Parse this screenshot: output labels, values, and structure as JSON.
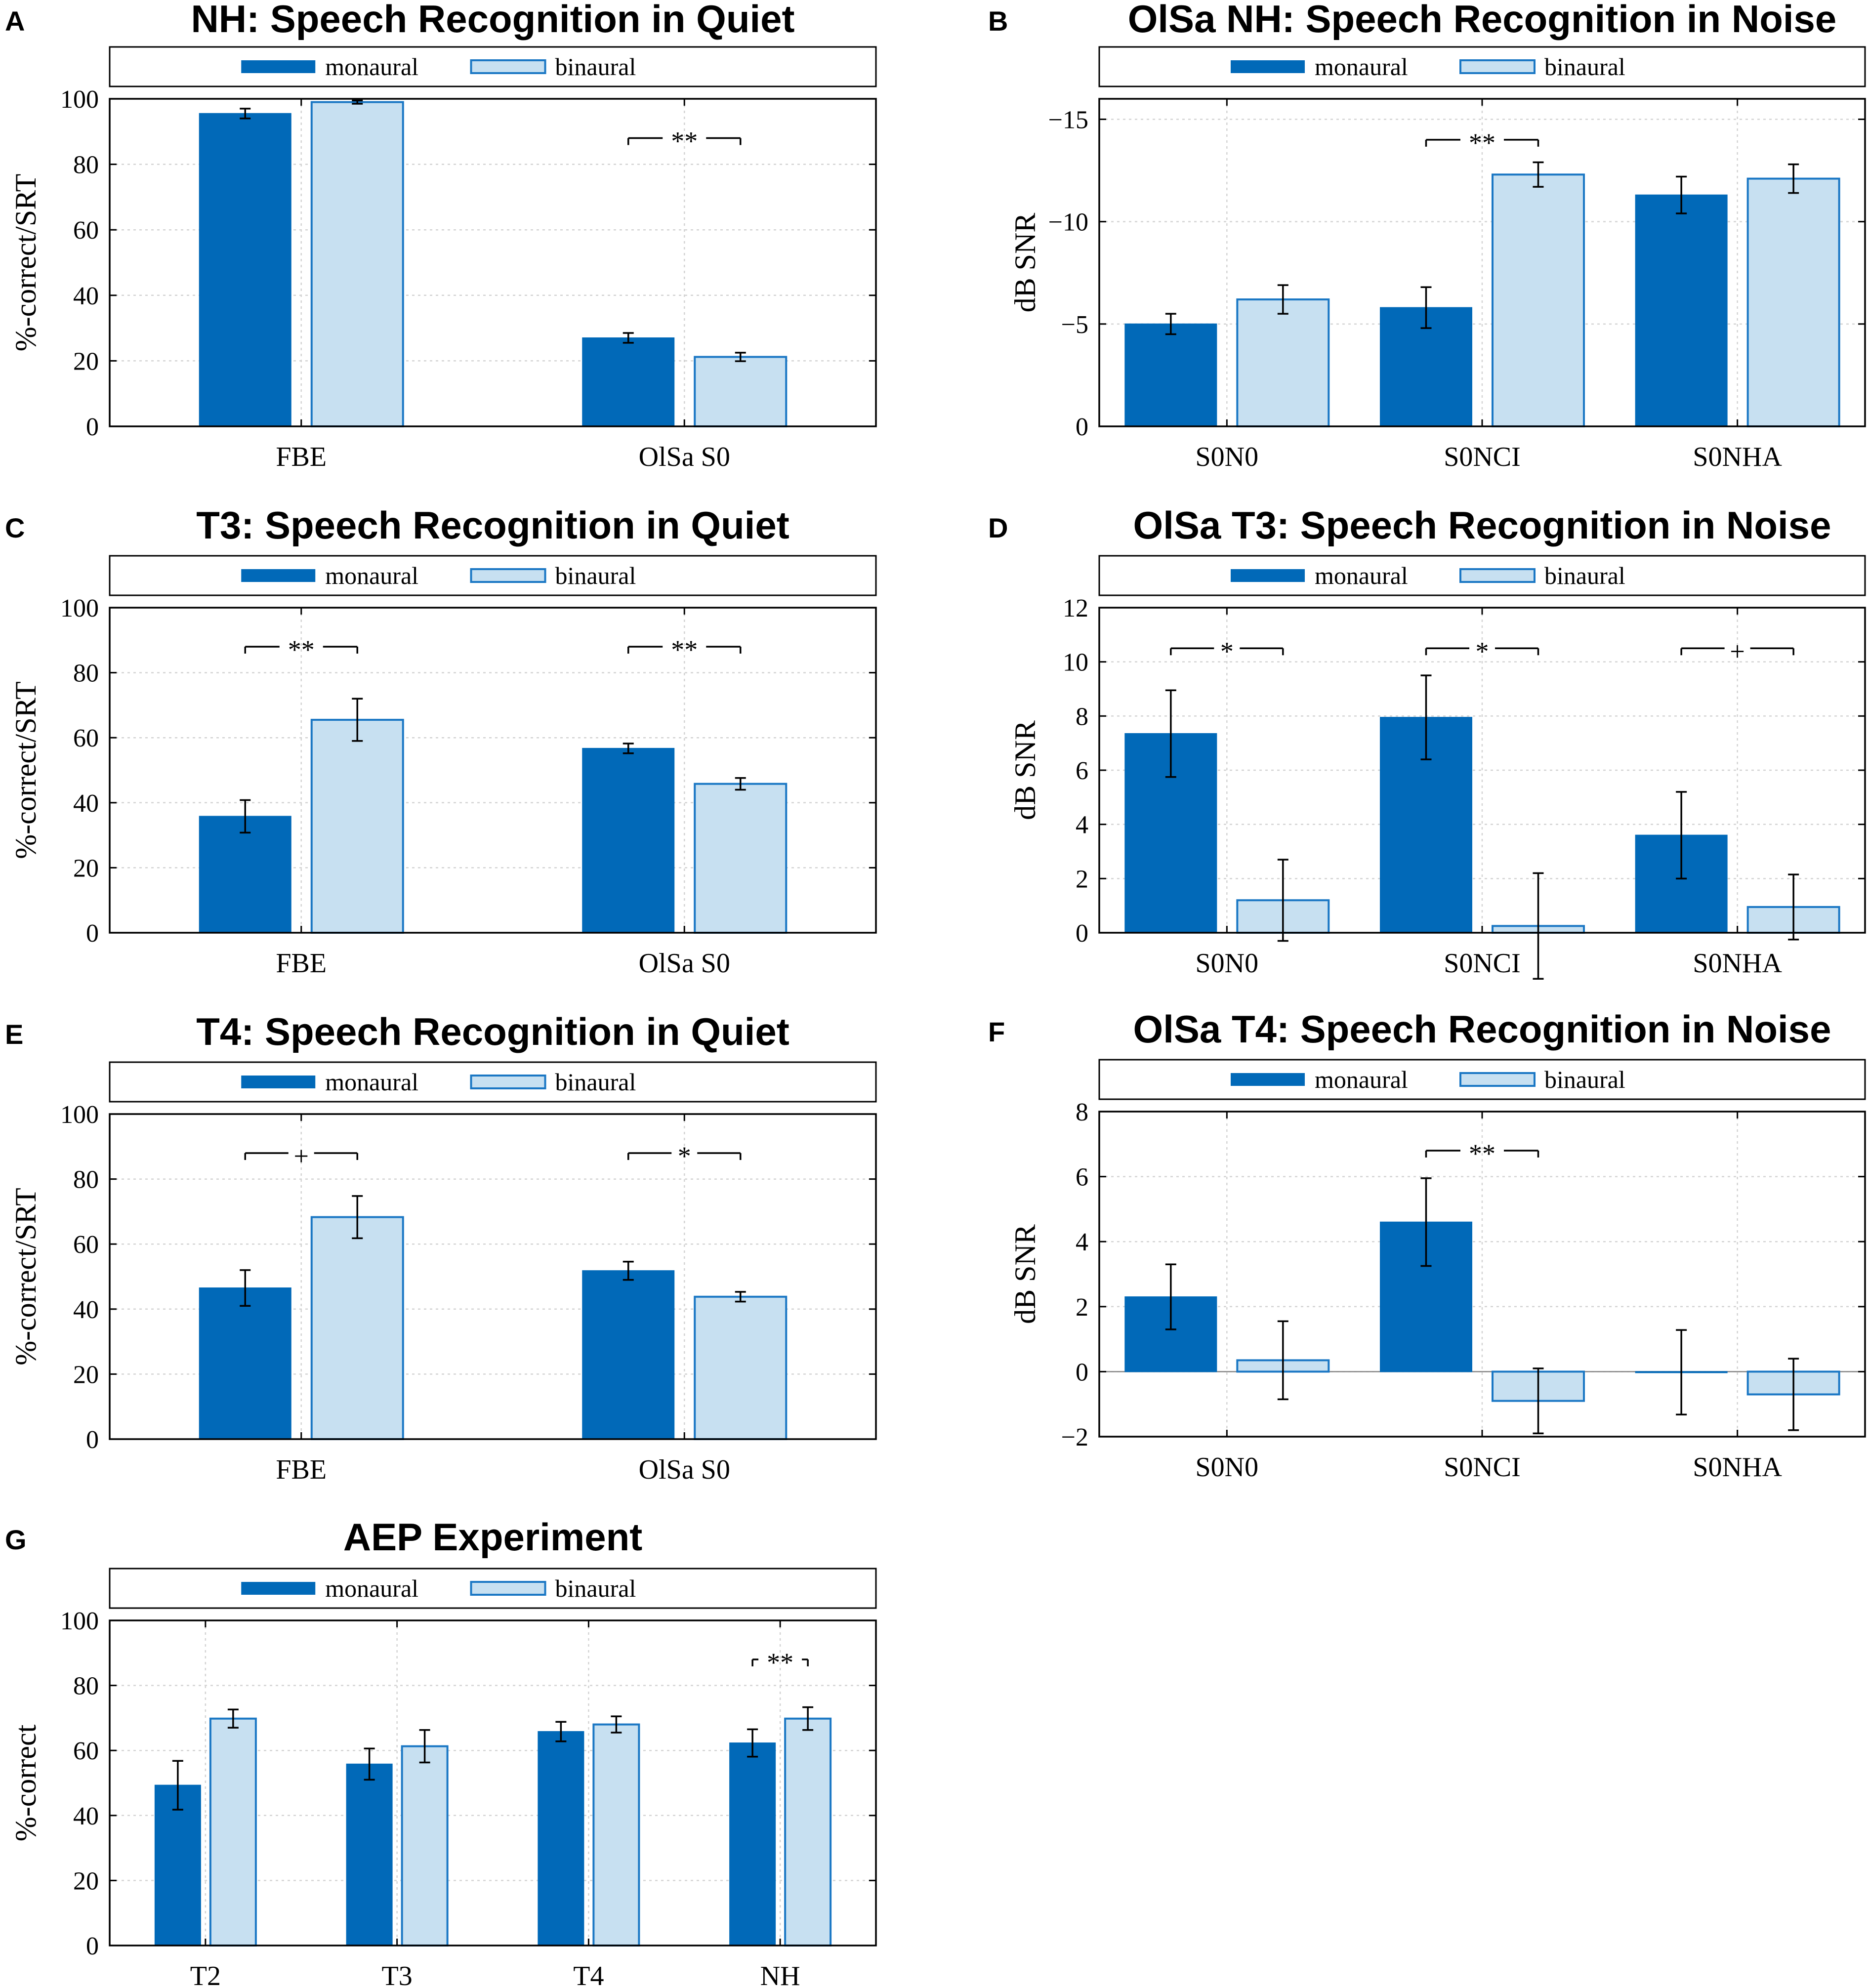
{
  "colors": {
    "monaural": "#0169b8",
    "binaural": "#c7e0f1",
    "binaural_edge": "#1a77c4",
    "grid": "#d3d3d3"
  },
  "legend": {
    "monaural": "monaural",
    "binaural": "binaural"
  },
  "chart_data": [
    {
      "id": "A",
      "letter": "A",
      "type": "bar",
      "title": "NH: Speech Recognition in Quiet",
      "ylabel": "%-correct/SRT",
      "ylim": [
        0,
        100
      ],
      "yticks": [
        "0",
        "20",
        "40",
        "60",
        "80",
        "100"
      ],
      "reversed": false,
      "categories": [
        "FBE",
        "OlSa S0"
      ],
      "series": [
        {
          "name": "monaural",
          "values": [
            95.5,
            27
          ],
          "errors": [
            1.5,
            1.5
          ]
        },
        {
          "name": "binaural",
          "values": [
            99,
            21.2
          ],
          "errors": [
            0.5,
            1.3
          ]
        }
      ],
      "annotations": [
        {
          "category": 1,
          "text": "**",
          "y": 88
        }
      ]
    },
    {
      "id": "B",
      "letter": "B",
      "type": "bar",
      "title": "OlSa NH: Speech Recognition in Noise",
      "ylabel": "dB SNR",
      "ylim": [
        0,
        -16
      ],
      "yticks": [
        "0",
        "−5",
        "−10",
        "−15"
      ],
      "reversed": true,
      "categories": [
        "S0N0",
        "S0NCI",
        "S0NHA"
      ],
      "series": [
        {
          "name": "monaural",
          "values": [
            -5,
            -5.8,
            -11.3
          ],
          "errors": [
            0.5,
            1.0,
            0.9
          ]
        },
        {
          "name": "binaural",
          "values": [
            -6.2,
            -12.3,
            -12.1
          ],
          "errors": [
            0.7,
            0.6,
            0.7
          ]
        }
      ],
      "annotations": [
        {
          "category": 1,
          "text": "**",
          "y": -14
        }
      ]
    },
    {
      "id": "C",
      "letter": "C",
      "type": "bar",
      "title": "T3: Speech Recognition in Quiet",
      "ylabel": "%-correct/SRT",
      "ylim": [
        0,
        100
      ],
      "yticks": [
        "0",
        "20",
        "40",
        "60",
        "80",
        "100"
      ],
      "reversed": false,
      "categories": [
        "FBE",
        "OlSa S0"
      ],
      "series": [
        {
          "name": "monaural",
          "values": [
            35.8,
            56.7
          ],
          "errors": [
            5,
            1.5
          ]
        },
        {
          "name": "binaural",
          "values": [
            65.5,
            45.8
          ],
          "errors": [
            6.5,
            1.8
          ]
        }
      ],
      "annotations": [
        {
          "category": 0,
          "text": "**",
          "y": 88
        },
        {
          "category": 1,
          "text": "**",
          "y": 88
        }
      ]
    },
    {
      "id": "D",
      "letter": "D",
      "type": "bar",
      "title": "OlSa T3: Speech Recognition in Noise",
      "ylabel": "dB SNR",
      "ylim": [
        0,
        12
      ],
      "yticks": [
        "0",
        "2",
        "4",
        "6",
        "8",
        "10",
        "12"
      ],
      "reversed": false,
      "categories": [
        "S0N0",
        "S0NCI",
        "S0NHA"
      ],
      "series": [
        {
          "name": "monaural",
          "values": [
            7.35,
            7.95,
            3.6
          ],
          "errors": [
            1.6,
            1.55,
            1.6
          ]
        },
        {
          "name": "binaural",
          "values": [
            1.2,
            0.25,
            0.95
          ],
          "errors": [
            1.5,
            1.95,
            1.2
          ]
        }
      ],
      "annotations": [
        {
          "category": 0,
          "text": "*",
          "y": 10.5
        },
        {
          "category": 1,
          "text": "*",
          "y": 10.5
        },
        {
          "category": 2,
          "text": "+",
          "y": 10.5
        }
      ]
    },
    {
      "id": "E",
      "letter": "E",
      "type": "bar",
      "title": "T4: Speech Recognition in Quiet",
      "ylabel": "%-correct/SRT",
      "ylim": [
        0,
        100
      ],
      "yticks": [
        "0",
        "20",
        "40",
        "60",
        "80",
        "100"
      ],
      "reversed": false,
      "categories": [
        "FBE",
        "OlSa S0"
      ],
      "series": [
        {
          "name": "monaural",
          "values": [
            46.5,
            51.8
          ],
          "errors": [
            5.5,
            2.8
          ]
        },
        {
          "name": "binaural",
          "values": [
            68.3,
            43.8
          ],
          "errors": [
            6.5,
            1.5
          ]
        }
      ],
      "annotations": [
        {
          "category": 0,
          "text": "+",
          "y": 88
        },
        {
          "category": 1,
          "text": "*",
          "y": 88
        }
      ]
    },
    {
      "id": "F",
      "letter": "F",
      "type": "bar",
      "title": "OlSa T4: Speech Recognition in Noise",
      "ylabel": "dB SNR",
      "ylim": [
        -2,
        8
      ],
      "yticks": [
        "−2",
        "0",
        "2",
        "4",
        "6",
        "8"
      ],
      "reversed": false,
      "categories": [
        "S0N0",
        "S0NCI",
        "S0NHA"
      ],
      "series": [
        {
          "name": "monaural",
          "values": [
            2.3,
            4.6,
            -0.02
          ],
          "errors": [
            1.0,
            1.35,
            1.3
          ]
        },
        {
          "name": "binaural",
          "values": [
            0.35,
            -0.9,
            -0.7
          ],
          "errors": [
            1.2,
            1.0,
            1.1
          ]
        }
      ],
      "annotations": [
        {
          "category": 1,
          "text": "**",
          "y": 6.8
        }
      ]
    },
    {
      "id": "G",
      "letter": "G",
      "type": "bar",
      "title": "AEP Experiment",
      "ylabel": "%-correct",
      "ylim": [
        0,
        100
      ],
      "yticks": [
        "0",
        "20",
        "40",
        "60",
        "80",
        "100"
      ],
      "reversed": false,
      "categories": [
        "T2",
        "T3",
        "T4",
        "NH"
      ],
      "series": [
        {
          "name": "monaural",
          "values": [
            49.3,
            55.8,
            65.8,
            62.3
          ],
          "errors": [
            7.5,
            4.8,
            3,
            4.2
          ]
        },
        {
          "name": "binaural",
          "values": [
            69.8,
            61.3,
            68,
            69.8
          ],
          "errors": [
            2.8,
            5,
            2.5,
            3.5
          ]
        }
      ],
      "annotations": [
        {
          "category": 3,
          "text": "**",
          "y": 88
        }
      ]
    }
  ]
}
